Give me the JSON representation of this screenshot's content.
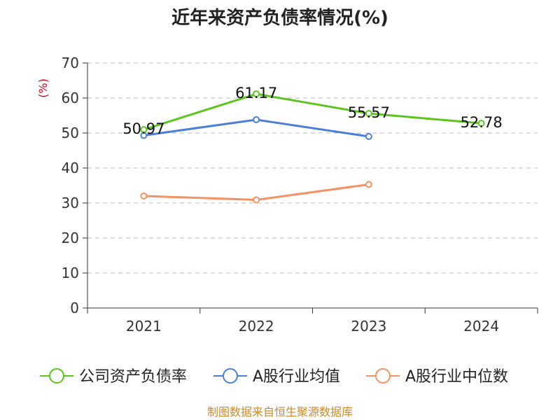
{
  "chart_data": {
    "type": "line",
    "title": "近年来资产负债率情况(%)",
    "ylabel": "(%)",
    "xlabel": "",
    "categories": [
      "2021",
      "2022",
      "2023",
      "2024"
    ],
    "ylim": [
      0,
      70
    ],
    "yticks": [
      0,
      10,
      20,
      30,
      40,
      50,
      60,
      70
    ],
    "grid": true,
    "legend_position": "bottom",
    "series": [
      {
        "name": "公司资产负债率",
        "color": "#5cc41f",
        "values": [
          50.97,
          61.17,
          55.57,
          52.78
        ],
        "data_labels": [
          "50.97",
          "61.17",
          "55.57",
          "52.78"
        ]
      },
      {
        "name": "A股行业均值",
        "color": "#4a7fd8",
        "values": [
          49.3,
          53.8,
          49.0,
          null
        ],
        "data_labels": []
      },
      {
        "name": "A股行业中位数",
        "color": "#f59162",
        "values": [
          32.0,
          30.9,
          35.3,
          null
        ],
        "data_labels": []
      }
    ]
  },
  "footer": {
    "source": "制图数据来自恒生聚源数据库"
  }
}
